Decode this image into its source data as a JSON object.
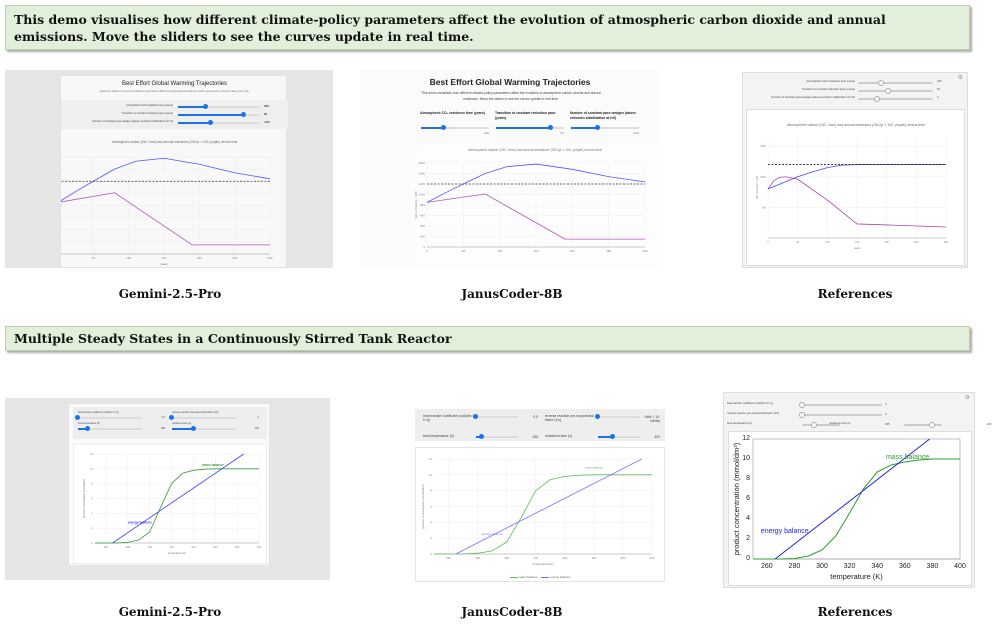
{
  "section1": {
    "banner": "This demo visualises how different climate-policy parameters affect the evolution of atmospheric carbon dioxide and annual emissions. Move the sliders to see the curves update in real time.",
    "captions": [
      "Gemini-2.5-Pro",
      "JanusCoder-8B",
      "References"
    ],
    "gemini": {
      "title": "Best Effort Global Warming Trajectories",
      "subtitle": "Adjust the sliders to see how different parameters affect the projected atmospheric carbon levels and emission rates over time.",
      "sliders": [
        {
          "label": "Atmospheric CO2 residence time (years)",
          "value": "200",
          "fraction": 0.34
        },
        {
          "label": "Transition to constant reduction pace (years)",
          "value": "81",
          "fraction": 0.81
        },
        {
          "label": "Number of constant pace wedges (above emission stabilization at t=0)",
          "value": "4.00",
          "fraction": 0.4
        }
      ]
    },
    "janus": {
      "title": "Best Effort Global Warming Trajectories",
      "subtitle": "This demo visualises how different climate-policy parameters affect the evolution of atmospheric carbon dioxide and annual emissions. Move the sliders to see the curves update in real time.",
      "sliders": [
        {
          "label": "Atmospheric CO₂ residence time (years)",
          "value": "200",
          "fraction": 0.34
        },
        {
          "label": "Transition to constant reduction pace (years)",
          "value": "81",
          "fraction": 0.81
        },
        {
          "label": "Number of constant pace wedges (above emission stabilization at t=0)",
          "value": "4.00",
          "fraction": 0.4
        }
      ]
    },
    "ref": {
      "sliders": [
        {
          "label": "Atmospheric CO2 residence time (years)",
          "value": "200",
          "fraction": 0.3
        },
        {
          "label": "Transition to constant reduction pace (years)",
          "value": "81",
          "fraction": 0.4
        },
        {
          "label": "Number of constant pace wedges (above emission stabilization at t=0)",
          "value": "4",
          "fraction": 0.25
        }
      ]
    }
  },
  "section2": {
    "banner": "Multiple Steady States in a Continuously Stirred Tank Reactor",
    "captions": [
      "Gemini-2.5-Pro",
      "JanusCoder-8B",
      "References"
    ],
    "gemini": {
      "controls": [
        {
          "label": "heat transfer coefficient (cal/(dm² K s))",
          "value": "0.0",
          "fraction": 0
        },
        {
          "label": "reverse reaction pre-exponential factor (1/s)",
          "value": "0",
          "fraction": 0
        },
        {
          "label": "feed temperature (K)",
          "value": "265",
          "fraction": 0.15
        },
        {
          "label": "residence time (s)",
          "value": "400",
          "fraction": 0.35
        }
      ]
    },
    "janus": {
      "controls": [
        {
          "label": "heat transfer coefficient (cal/(dm² K s))",
          "value": "0.0",
          "fraction": 0
        },
        {
          "label": "reverse reaction pre-exponential factor (1/s)",
          "value": "NaN × 10-Infinity",
          "fraction": 0
        },
        {
          "label": "feed temperature (K)",
          "value": "265",
          "fraction": 0.15
        },
        {
          "label": "residence time (s)",
          "value": "400",
          "fraction": 0.35
        }
      ],
      "legend": [
        "mass balance",
        "energy balance"
      ]
    },
    "ref": {
      "controls": [
        {
          "label": "heat transfer coefficient (cal/(dm² K s))",
          "value": "0",
          "fraction": 0
        },
        {
          "label": "reverse reaction pre-exponential factor (1/s)",
          "value": "0",
          "fraction": 0
        },
        {
          "label": "feed temperature (K)",
          "value": "265",
          "fraction": 0.15
        },
        {
          "label": "residence time (s)",
          "value": "400",
          "fraction": 0.35
        }
      ]
    }
  },
  "chart_data": [
    {
      "type": "line",
      "title": "Atmospheric carbon (GtC; blue) and annual emissions (GtC/yr × 100; purple) versus time",
      "xlabel": "years",
      "ylabel": "GtC or GtC/yr × 100",
      "xlim": [
        0,
        300
      ],
      "ylim": [
        0,
        1600
      ],
      "xticks": [
        0,
        50,
        100,
        150,
        200,
        250,
        300
      ],
      "yticks": [
        0,
        200,
        400,
        600,
        800,
        1000,
        1200,
        1400,
        1600
      ],
      "grid": true,
      "series": [
        {
          "name": "atmospheric carbon",
          "color": "#5555ff",
          "points": [
            [
              0,
              850
            ],
            [
              25,
              1030
            ],
            [
              50,
              1200
            ],
            [
              80,
              1400
            ],
            [
              110,
              1530
            ],
            [
              150,
              1580
            ],
            [
              200,
              1480
            ],
            [
              250,
              1340
            ],
            [
              300,
              1240
            ]
          ]
        },
        {
          "name": "annual emissions",
          "color": "#b455c8",
          "points": [
            [
              0,
              850
            ],
            [
              80,
              1010
            ],
            [
              190,
              150
            ],
            [
              300,
              150
            ]
          ]
        },
        {
          "name": "stabilization level",
          "color": "#333333",
          "dash": true,
          "points": [
            [
              0,
              1200
            ],
            [
              300,
              1200
            ]
          ]
        }
      ]
    },
    {
      "type": "line",
      "title": "Atmospheric carbon (GtC; blue) and annual emissions (GtC/yr × 100; purple) versus time",
      "xlabel": "years",
      "ylabel": "GtC or GtC/yr × 100",
      "xlim": [
        0,
        300
      ],
      "ylim": [
        0,
        1600
      ],
      "xticks": [
        0,
        50,
        100,
        150,
        200,
        250,
        300
      ],
      "yticks": [
        0,
        200,
        400,
        600,
        800,
        1000,
        1200,
        1400,
        1600
      ],
      "grid": true,
      "series": [
        {
          "name": "atmospheric carbon",
          "color": "#5555ff",
          "points": [
            [
              0,
              850
            ],
            [
              25,
              1030
            ],
            [
              50,
              1200
            ],
            [
              80,
              1400
            ],
            [
              110,
              1530
            ],
            [
              150,
              1580
            ],
            [
              200,
              1480
            ],
            [
              250,
              1340
            ],
            [
              300,
              1240
            ]
          ]
        },
        {
          "name": "annual emissions",
          "color": "#b455c8",
          "points": [
            [
              0,
              850
            ],
            [
              80,
              1010
            ],
            [
              190,
              150
            ],
            [
              300,
              150
            ]
          ]
        },
        {
          "name": "stabilization level",
          "color": "#333333",
          "dash": true,
          "points": [
            [
              0,
              1200
            ],
            [
              300,
              1200
            ]
          ]
        }
      ]
    },
    {
      "type": "line",
      "title": "Atmospheric carbon (GtC; blue) and annual emissions (GtC/yr × 100; purple) versus time",
      "xlabel": "years",
      "ylabel": "GtC or GtC/yr × 100",
      "xlim": [
        0,
        300
      ],
      "ylim": [
        0,
        1650
      ],
      "xticks": [
        0,
        50,
        100,
        150,
        200,
        250,
        300
      ],
      "yticks": [
        500,
        1000,
        1500
      ],
      "grid": true,
      "series": [
        {
          "name": "atmospheric carbon",
          "color": "#4444ff",
          "points": [
            [
              0,
              800
            ],
            [
              25,
              900
            ],
            [
              50,
              1000
            ],
            [
              75,
              1080
            ],
            [
              100,
              1150
            ],
            [
              125,
              1190
            ],
            [
              150,
              1200
            ],
            [
              300,
              1200
            ]
          ]
        },
        {
          "name": "annual emissions",
          "color": "#b040b0",
          "points": [
            [
              0,
              800
            ],
            [
              10,
              940
            ],
            [
              20,
              990
            ],
            [
              30,
              1000
            ],
            [
              50,
              960
            ],
            [
              100,
              620
            ],
            [
              150,
              230
            ],
            [
              300,
              180
            ]
          ]
        },
        {
          "name": "stabilization level",
          "color": "#222222",
          "dash": true,
          "points": [
            [
              0,
              1200
            ],
            [
              300,
              1200
            ]
          ]
        }
      ]
    },
    {
      "type": "line",
      "xlabel": "temperature (K)",
      "ylabel": "product concentration (mmol/dm³)",
      "xlim": [
        250,
        400
      ],
      "ylim": [
        0,
        12
      ],
      "xticks": [
        260,
        280,
        300,
        320,
        340,
        360,
        380,
        400
      ],
      "yticks": [
        0,
        2,
        4,
        6,
        8,
        10,
        12
      ],
      "grid": true,
      "series": [
        {
          "name": "mass balance",
          "color": "#3a9a3a",
          "points": [
            [
              250,
              0
            ],
            [
              270,
              0
            ],
            [
              280,
              0.1
            ],
            [
              290,
              0.4
            ],
            [
              300,
              1.5
            ],
            [
              310,
              4.8
            ],
            [
              320,
              8
            ],
            [
              330,
              9.4
            ],
            [
              340,
              9.8
            ],
            [
              350,
              9.95
            ],
            [
              360,
              10
            ],
            [
              400,
              10
            ]
          ]
        },
        {
          "name": "energy balance",
          "color": "#4040ff",
          "points": [
            [
              266,
              0
            ],
            [
              386,
              12
            ]
          ]
        }
      ],
      "annotations": [
        {
          "text": "mass balance",
          "x": 358,
          "y": 10.4
        },
        {
          "text": "energy balance",
          "x": 291,
          "y": 2.6
        }
      ]
    },
    {
      "type": "line",
      "xlabel": "temperature (K)",
      "ylabel": "product concentration (mmol/dm³)",
      "xlim": [
        250,
        400
      ],
      "ylim": [
        0,
        12
      ],
      "xticks": [
        260,
        280,
        300,
        320,
        340,
        360,
        380,
        400
      ],
      "yticks": [
        0,
        2,
        4,
        6,
        8,
        10,
        12
      ],
      "grid": true,
      "series": [
        {
          "name": "mass balance",
          "color": "#5cb85c",
          "points": [
            [
              250,
              0
            ],
            [
              270,
              0
            ],
            [
              280,
              0.1
            ],
            [
              290,
              0.4
            ],
            [
              300,
              1.5
            ],
            [
              310,
              4.6
            ],
            [
              320,
              8
            ],
            [
              330,
              9.4
            ],
            [
              340,
              9.8
            ],
            [
              350,
              9.95
            ],
            [
              360,
              10
            ],
            [
              400,
              10
            ]
          ]
        },
        {
          "name": "energy balance",
          "color": "#7070ff",
          "points": [
            [
              265,
              0
            ],
            [
              393,
              12
            ]
          ]
        }
      ],
      "annotations": [
        {
          "text": "mass balance",
          "x": 360,
          "y": 10.8
        },
        {
          "text": "energy balance",
          "x": 290,
          "y": 2.4
        }
      ]
    },
    {
      "type": "line",
      "xlabel": "temperature (K)",
      "ylabel": "product concentration (mmol/dm³)",
      "xlim": [
        250,
        400
      ],
      "ylim": [
        0,
        12
      ],
      "xticks": [
        260,
        280,
        300,
        320,
        340,
        360,
        380,
        400
      ],
      "yticks": [
        0,
        2,
        4,
        6,
        8,
        10,
        12
      ],
      "grid": false,
      "series": [
        {
          "name": "mass balance",
          "color": "#2ca02c",
          "points": [
            [
              250,
              0
            ],
            [
              270,
              0
            ],
            [
              280,
              0.05
            ],
            [
              290,
              0.3
            ],
            [
              300,
              0.9
            ],
            [
              310,
              2.3
            ],
            [
              320,
              4.6
            ],
            [
              330,
              7
            ],
            [
              340,
              8.7
            ],
            [
              350,
              9.4
            ],
            [
              360,
              9.7
            ],
            [
              370,
              9.9
            ],
            [
              380,
              10
            ],
            [
              400,
              10
            ]
          ]
        },
        {
          "name": "energy balance",
          "color": "#2222ee",
          "points": [
            [
              266,
              0
            ],
            [
              378,
              12
            ]
          ]
        }
      ],
      "annotations": [
        {
          "text": "mass balance",
          "x": 362,
          "y": 10
        },
        {
          "text": "energy balance",
          "x": 273,
          "y": 2.6
        }
      ]
    }
  ]
}
